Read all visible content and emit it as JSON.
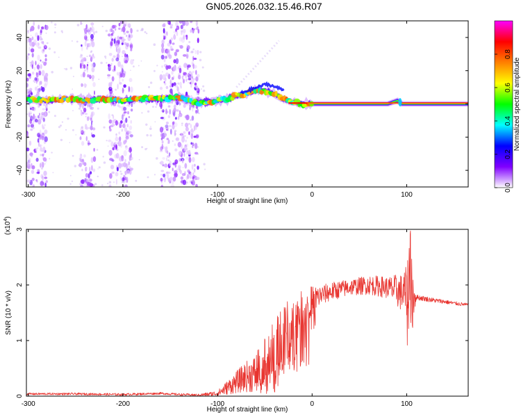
{
  "title": "GN05.2026.032.15.46.R07",
  "colors": {
    "snr_line": "#e8342f",
    "frame": "#000000"
  },
  "chart_data": [
    {
      "type": "heatmap",
      "xlabel": "Height of straight line (km)",
      "ylabel": "Frequency (Hz)",
      "xlim": [
        -302,
        165
      ],
      "ylim": [
        -50,
        50
      ],
      "xticks": [
        -300,
        -200,
        -100,
        0,
        100
      ],
      "yticks": [
        40,
        20,
        0,
        -20,
        -40
      ],
      "colorbar": {
        "label": "Normalized spectral amplitude",
        "range": [
          0,
          1
        ],
        "ticks": [
          "0.0",
          "0.2",
          "0.4",
          "0.6",
          "0.8"
        ],
        "tick_values": [
          0,
          0.2,
          0.4,
          0.6,
          0.8
        ],
        "colormap": [
          "#ffffff",
          "#8000ff",
          "#0000ff",
          "#00ffff",
          "#00ff00",
          "#ffff00",
          "#ff8000",
          "#ff0000",
          "#ff00ff"
        ]
      },
      "ridge": {
        "x": [
          -302,
          -280,
          -260,
          -240,
          -220,
          -200,
          -180,
          -160,
          -140,
          -125,
          -115,
          -100,
          -90,
          -80,
          -70,
          -60,
          -50,
          -40,
          -30,
          -20,
          -10,
          0,
          20,
          40,
          60,
          80,
          90,
          95,
          100,
          130,
          165
        ],
        "y": [
          3,
          2,
          3,
          2,
          3,
          2,
          3,
          3,
          4,
          1,
          1,
          2,
          3,
          5,
          6,
          8,
          8,
          6,
          3,
          1,
          0,
          0,
          0,
          0,
          0,
          0,
          2,
          0,
          0,
          0,
          0
        ]
      },
      "noise_bands_x": [
        [
          -302,
          -280
        ],
        [
          -245,
          -230
        ],
        [
          -215,
          -190
        ],
        [
          -160,
          -120
        ]
      ]
    },
    {
      "type": "line",
      "xlabel": "Height of straight line (km)",
      "ylabel": "SNR (10 * v/v)",
      "exponent_label": "(x10",
      "exponent_sup": "4",
      "exponent_close": ")",
      "xlim": [
        -302,
        165
      ],
      "ylim": [
        0,
        3
      ],
      "xticks": [
        -300,
        -200,
        -100,
        0,
        100
      ],
      "yticks": [
        0,
        1,
        2,
        3
      ],
      "envelope": {
        "x": [
          -302,
          -250,
          -200,
          -160,
          -140,
          -120,
          -100,
          -90,
          -80,
          -70,
          -60,
          -50,
          -40,
          -35,
          -30,
          -25,
          -20,
          -15,
          -10,
          -5,
          0,
          10,
          20,
          30,
          40,
          50,
          60,
          70,
          80,
          90,
          95,
          100,
          103,
          105,
          110,
          120,
          130,
          140,
          150,
          165
        ],
        "y": [
          0.04,
          0.04,
          0.03,
          0.05,
          0.03,
          0.02,
          0.05,
          0.15,
          0.25,
          0.35,
          0.4,
          0.55,
          0.7,
          0.8,
          1.0,
          1.15,
          1.3,
          1.45,
          1.55,
          1.65,
          1.72,
          1.82,
          1.88,
          1.92,
          1.96,
          1.98,
          2.0,
          1.98,
          1.95,
          1.9,
          1.85,
          1.85,
          1.8,
          1.78,
          1.78,
          1.75,
          1.72,
          1.7,
          1.67,
          1.64
        ]
      },
      "noise_amplitude": {
        "x": [
          -302,
          -120,
          -100,
          -80,
          -60,
          -45,
          -35,
          -25,
          -15,
          -5,
          10,
          40,
          80,
          95,
          100,
          104,
          110,
          165
        ],
        "y": [
          0.02,
          0.02,
          0.05,
          0.2,
          0.35,
          0.6,
          0.7,
          0.6,
          0.4,
          0.3,
          0.18,
          0.15,
          0.2,
          0.35,
          0.5,
          0.9,
          0.05,
          0.03
        ]
      }
    }
  ]
}
